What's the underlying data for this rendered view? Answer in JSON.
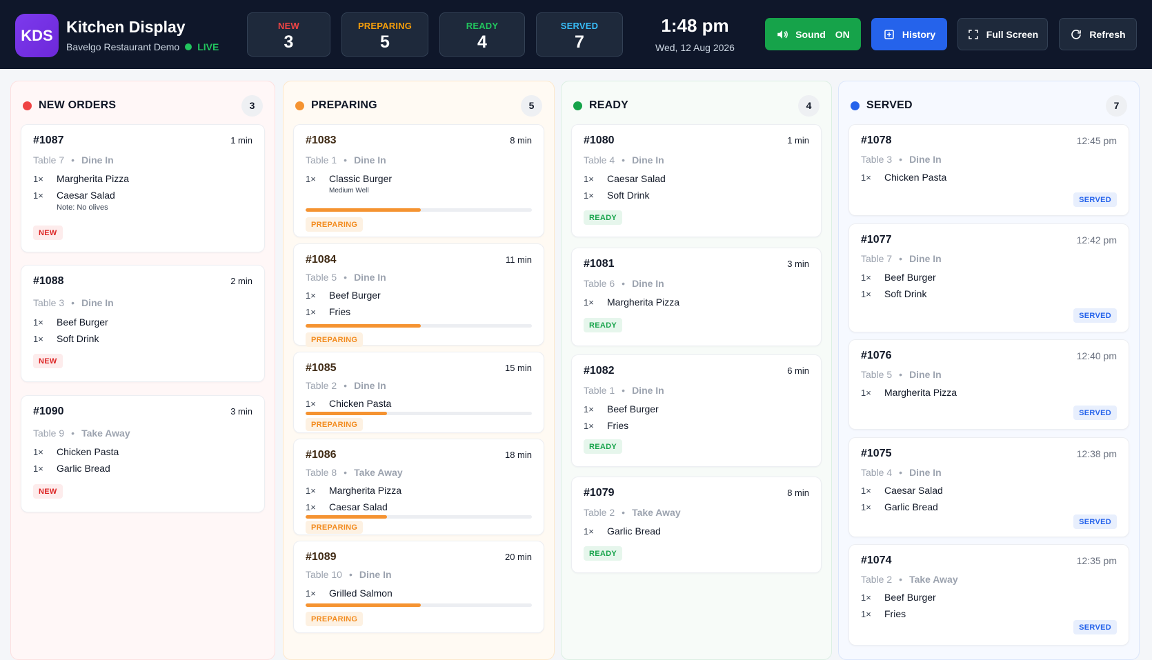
{
  "header": {
    "logo": "KDS",
    "title": "Kitchen Display",
    "subtitle": "Bavelgo Restaurant Demo",
    "live": "LIVE",
    "stats": [
      {
        "label": "NEW",
        "value": "3"
      },
      {
        "label": "PREPARING",
        "value": "5"
      },
      {
        "label": "READY",
        "value": "4"
      },
      {
        "label": "SERVED",
        "value": "7"
      }
    ],
    "time": "1:48 pm",
    "date": "Wed, 12 Aug 2026",
    "buttons": {
      "sound": "Sound",
      "sound_state": "ON",
      "history": "History",
      "fullscreen": "Full Screen",
      "refresh": "Refresh"
    }
  },
  "colors": {
    "new": "#ef4444",
    "preparing": "#f59331",
    "ready": "#16a34a",
    "served": "#2563eb"
  },
  "columns": {
    "new": {
      "title": "NEW ORDERS",
      "count": "3",
      "orders": [
        {
          "id": "#1087",
          "time": "1 min",
          "table": "Table 7",
          "type": "Dine In",
          "items": [
            {
              "qty": "1×",
              "name": "Margherita Pizza"
            },
            {
              "qty": "1×",
              "name": "Caesar Salad"
            }
          ],
          "note": "Note: No olives",
          "status": "NEW"
        },
        {
          "id": "#1088",
          "time": "2 min",
          "table": "Table 3",
          "type": "Dine In",
          "items": [
            {
              "qty": "1×",
              "name": "Beef Burger"
            },
            {
              "qty": "1×",
              "name": "Soft Drink"
            }
          ],
          "status": "NEW"
        },
        {
          "id": "#1090",
          "time": "3 min",
          "table": "Table 9",
          "type": "Take Away",
          "items": [
            {
              "qty": "1×",
              "name": "Chicken Pasta"
            },
            {
              "qty": "1×",
              "name": "Garlic Bread"
            }
          ],
          "status": "NEW"
        }
      ]
    },
    "preparing": {
      "title": "PREPARING",
      "count": "5",
      "orders": [
        {
          "id": "#1083",
          "time": "8 min",
          "table": "Table 1",
          "type": "Dine In",
          "items": [
            {
              "qty": "1×",
              "name": "Classic Burger"
            }
          ],
          "note": "Medium Well",
          "progress": 0.51,
          "status": "PREPARING"
        },
        {
          "id": "#1084",
          "time": "11 min",
          "table": "Table 5",
          "type": "Dine In",
          "items": [
            {
              "qty": "1×",
              "name": "Beef Burger"
            },
            {
              "qty": "1×",
              "name": "Fries"
            }
          ],
          "progress": 0.51,
          "status": "PREPARING"
        },
        {
          "id": "#1085",
          "time": "15 min",
          "table": "Table 2",
          "type": "Dine In",
          "items": [
            {
              "qty": "1×",
              "name": "Chicken Pasta"
            }
          ],
          "progress": 0.36,
          "status": "PREPARING"
        },
        {
          "id": "#1086",
          "time": "18 min",
          "table": "Table 8",
          "type": "Take Away",
          "items": [
            {
              "qty": "1×",
              "name": "Margherita Pizza"
            },
            {
              "qty": "1×",
              "name": "Caesar Salad"
            }
          ],
          "progress": 0.36,
          "status": "PREPARING"
        },
        {
          "id": "#1089",
          "time": "20 min",
          "table": "Table 10",
          "type": "Dine In",
          "items": [
            {
              "qty": "1×",
              "name": "Grilled Salmon"
            }
          ],
          "progress": 0.51,
          "status": "PREPARING"
        }
      ]
    },
    "ready": {
      "title": "READY",
      "count": "4",
      "orders": [
        {
          "id": "#1080",
          "time": "1 min",
          "table": "Table 4",
          "type": "Dine In",
          "items": [
            {
              "qty": "1×",
              "name": "Caesar Salad"
            },
            {
              "qty": "1×",
              "name": "Soft Drink"
            }
          ],
          "status": "READY"
        },
        {
          "id": "#1081",
          "time": "3 min",
          "table": "Table 6",
          "type": "Dine In",
          "items": [
            {
              "qty": "1×",
              "name": "Margherita Pizza"
            }
          ],
          "status": "READY"
        },
        {
          "id": "#1082",
          "time": "6 min",
          "table": "Table 1",
          "type": "Dine In",
          "items": [
            {
              "qty": "1×",
              "name": "Beef Burger"
            },
            {
              "qty": "1×",
              "name": "Fries"
            }
          ],
          "status": "READY"
        },
        {
          "id": "#1079",
          "time": "8 min",
          "table": "Table 2",
          "type": "Take Away",
          "items": [
            {
              "qty": "1×",
              "name": "Garlic Bread"
            }
          ],
          "status": "READY"
        }
      ]
    },
    "served": {
      "title": "SERVED",
      "count": "7",
      "orders": [
        {
          "id": "#1078",
          "time": "12:45 pm",
          "table": "Table 3",
          "type": "Dine In",
          "items": [
            {
              "qty": "1×",
              "name": "Chicken Pasta"
            }
          ],
          "status": "SERVED"
        },
        {
          "id": "#1077",
          "time": "12:42 pm",
          "table": "Table 7",
          "type": "Dine In",
          "items": [
            {
              "qty": "1×",
              "name": "Beef Burger"
            },
            {
              "qty": "1×",
              "name": "Soft Drink"
            }
          ],
          "status": "SERVED"
        },
        {
          "id": "#1076",
          "time": "12:40 pm",
          "table": "Table 5",
          "type": "Dine In",
          "items": [
            {
              "qty": "1×",
              "name": "Margherita Pizza"
            }
          ],
          "status": "SERVED"
        },
        {
          "id": "#1075",
          "time": "12:38 pm",
          "table": "Table 4",
          "type": "Dine In",
          "items": [
            {
              "qty": "1×",
              "name": "Caesar Salad"
            },
            {
              "qty": "1×",
              "name": "Garlic Bread"
            }
          ],
          "status": "SERVED"
        },
        {
          "id": "#1074",
          "time": "12:35 pm",
          "table": "Table 2",
          "type": "Take Away",
          "items": [
            {
              "qty": "1×",
              "name": "Beef Burger"
            },
            {
              "qty": "1×",
              "name": "Fries"
            }
          ],
          "status": "SERVED"
        }
      ]
    }
  }
}
